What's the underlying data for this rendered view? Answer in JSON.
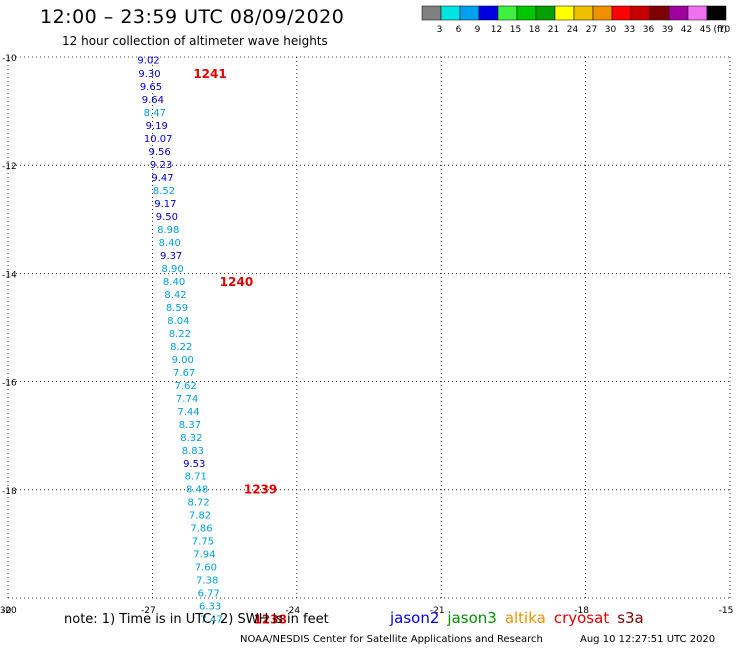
{
  "header": {
    "title": "12:00 – 23:59 UTC 08/09/2020",
    "subtitle": "12 hour collection of altimeter wave heights"
  },
  "colorbar": {
    "unit": "(ft)",
    "bins": [
      {
        "color": "#808080",
        "label": "3"
      },
      {
        "color": "#00e4e4",
        "label": "6"
      },
      {
        "color": "#00a0f0",
        "label": "9"
      },
      {
        "color": "#0000e0",
        "label": "12"
      },
      {
        "color": "#40f040",
        "label": "15"
      },
      {
        "color": "#00c800",
        "label": "18"
      },
      {
        "color": "#00a000",
        "label": "21"
      },
      {
        "color": "#ffff00",
        "label": "24"
      },
      {
        "color": "#f0c000",
        "label": "27"
      },
      {
        "color": "#f09000",
        "label": "30"
      },
      {
        "color": "#ff0000",
        "label": "33"
      },
      {
        "color": "#c80000",
        "label": "36"
      },
      {
        "color": "#800000",
        "label": "39"
      },
      {
        "color": "#a000a0",
        "label": "42"
      },
      {
        "color": "#f070f0",
        "label": "45"
      },
      {
        "color": "#000000",
        "label": "70"
      }
    ]
  },
  "footer": {
    "note": "note: 1) Time is in UTC; 2) SWH is in feet",
    "satellites": [
      {
        "name": "jason2",
        "color": "#0000e0"
      },
      {
        "name": "jason3",
        "color": "#009000"
      },
      {
        "name": "altika",
        "color": "#f09000"
      },
      {
        "name": "cryosat",
        "color": "#e00000"
      },
      {
        "name": "s3a",
        "color": "#800000"
      }
    ],
    "credit": "NOAA/NESDIS Center for Satellite Applications and Research",
    "timestamp": "Aug 10 12:27:51 UTC 2020"
  },
  "chart_data": {
    "type": "scatter",
    "xlim": [
      -30,
      -15
    ],
    "ylim": [
      -20,
      -10
    ],
    "x_ticks": [
      "-30",
      "-27",
      "-24",
      "-21",
      "-18",
      "-15"
    ],
    "y_ticks": [
      "-10",
      "-12",
      "-14",
      "-16",
      "-18",
      "-20"
    ],
    "grid": true,
    "colors": {
      "light": "#00a0d8",
      "dark": "#0000c8"
    },
    "points": [
      {
        "lon": -27.08,
        "lat": -10.05,
        "v": "9.02",
        "c": "dark"
      },
      {
        "lon": -27.06,
        "lat": -10.3,
        "v": "9.30",
        "c": "dark"
      },
      {
        "lon": -27.03,
        "lat": -10.54,
        "v": "9.65",
        "c": "dark"
      },
      {
        "lon": -26.99,
        "lat": -10.78,
        "v": "9.64",
        "c": "dark"
      },
      {
        "lon": -26.95,
        "lat": -11.02,
        "v": "8.47",
        "c": "light"
      },
      {
        "lon": -26.91,
        "lat": -11.26,
        "v": "9.19",
        "c": "dark"
      },
      {
        "lon": -26.88,
        "lat": -11.5,
        "v": "10.07",
        "c": "dark"
      },
      {
        "lon": -26.85,
        "lat": -11.74,
        "v": "9.56",
        "c": "dark"
      },
      {
        "lon": -26.82,
        "lat": -11.98,
        "v": "9.23",
        "c": "dark"
      },
      {
        "lon": -26.79,
        "lat": -12.22,
        "v": "9.47",
        "c": "dark"
      },
      {
        "lon": -26.76,
        "lat": -12.46,
        "v": "8.52",
        "c": "light"
      },
      {
        "lon": -26.73,
        "lat": -12.7,
        "v": "9.17",
        "c": "dark"
      },
      {
        "lon": -26.7,
        "lat": -12.94,
        "v": "9.50",
        "c": "dark"
      },
      {
        "lon": -26.67,
        "lat": -13.18,
        "v": "8.98",
        "c": "light"
      },
      {
        "lon": -26.64,
        "lat": -13.42,
        "v": "8.40",
        "c": "light"
      },
      {
        "lon": -26.61,
        "lat": -13.66,
        "v": "9.37",
        "c": "dark"
      },
      {
        "lon": -26.58,
        "lat": -13.9,
        "v": "8.90",
        "c": "light"
      },
      {
        "lon": -26.55,
        "lat": -14.14,
        "v": "8.40",
        "c": "light"
      },
      {
        "lon": -26.52,
        "lat": -14.38,
        "v": "8.42",
        "c": "light"
      },
      {
        "lon": -26.49,
        "lat": -14.62,
        "v": "8.59",
        "c": "light"
      },
      {
        "lon": -26.46,
        "lat": -14.86,
        "v": "8.04",
        "c": "light"
      },
      {
        "lon": -26.43,
        "lat": -15.1,
        "v": "8.22",
        "c": "light"
      },
      {
        "lon": -26.4,
        "lat": -15.34,
        "v": "8.22",
        "c": "light"
      },
      {
        "lon": -26.37,
        "lat": -15.58,
        "v": "9.00",
        "c": "light"
      },
      {
        "lon": -26.34,
        "lat": -15.82,
        "v": "7.67",
        "c": "light"
      },
      {
        "lon": -26.31,
        "lat": -16.06,
        "v": "7.62",
        "c": "light"
      },
      {
        "lon": -26.28,
        "lat": -16.3,
        "v": "7.74",
        "c": "light"
      },
      {
        "lon": -26.25,
        "lat": -16.54,
        "v": "7.44",
        "c": "light"
      },
      {
        "lon": -26.22,
        "lat": -16.78,
        "v": "8.37",
        "c": "light"
      },
      {
        "lon": -26.19,
        "lat": -17.02,
        "v": "8.32",
        "c": "light"
      },
      {
        "lon": -26.16,
        "lat": -17.26,
        "v": "8.83",
        "c": "light"
      },
      {
        "lon": -26.13,
        "lat": -17.5,
        "v": "9.53",
        "c": "dark"
      },
      {
        "lon": -26.1,
        "lat": -17.74,
        "v": "8.71",
        "c": "light"
      },
      {
        "lon": -26.07,
        "lat": -17.98,
        "v": "8.48",
        "c": "light"
      },
      {
        "lon": -26.04,
        "lat": -18.22,
        "v": "8.72",
        "c": "light"
      },
      {
        "lon": -26.01,
        "lat": -18.46,
        "v": "7.82",
        "c": "light"
      },
      {
        "lon": -25.98,
        "lat": -18.7,
        "v": "7.86",
        "c": "light"
      },
      {
        "lon": -25.95,
        "lat": -18.94,
        "v": "7.75",
        "c": "light"
      },
      {
        "lon": -25.92,
        "lat": -19.18,
        "v": "7.94",
        "c": "light"
      },
      {
        "lon": -25.89,
        "lat": -19.42,
        "v": "7.60",
        "c": "light"
      },
      {
        "lon": -25.86,
        "lat": -19.66,
        "v": "7.38",
        "c": "light"
      },
      {
        "lon": -25.83,
        "lat": -19.9,
        "v": "6.77",
        "c": "light"
      },
      {
        "lon": -25.8,
        "lat": -20.14,
        "v": "6.33",
        "c": "light"
      },
      {
        "lon": -25.77,
        "lat": -20.38,
        "v": "7.47",
        "c": "light"
      }
    ],
    "pass_labels": [
      {
        "label": "1241",
        "lon": -26.15,
        "lat": -10.3
      },
      {
        "label": "1240",
        "lon": -25.6,
        "lat": -14.14
      },
      {
        "label": "1239",
        "lon": -25.1,
        "lat": -17.98
      },
      {
        "label": "1238",
        "lon": -24.9,
        "lat": -20.38
      }
    ]
  }
}
